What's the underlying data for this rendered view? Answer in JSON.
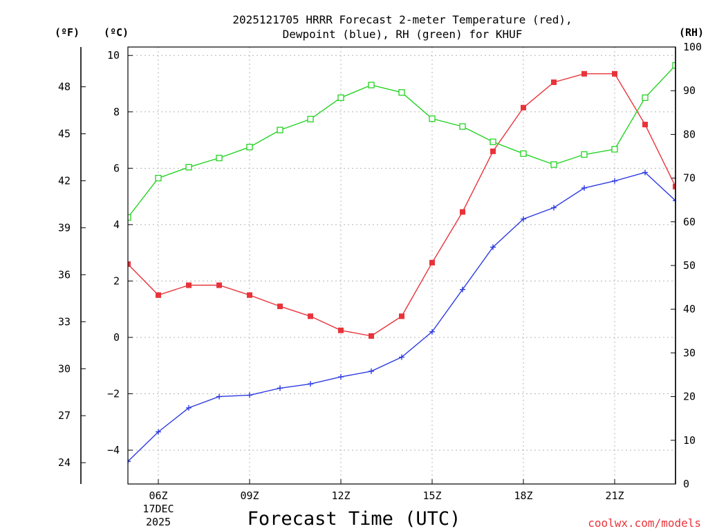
{
  "chart_data": {
    "type": "line",
    "title_line1": "2025121705 HRRR Forecast 2-meter Temperature (red),",
    "title_line2": "Dewpoint (blue), RH (green) for KHUF",
    "xlabel": "Forecast Time (UTC)",
    "watermark": "coolwx.com/models",
    "unit_labels": {
      "fahrenheit": "(ºF)",
      "celsius": "(ºC)",
      "rh": "(RH)"
    },
    "x_range": [
      5,
      23
    ],
    "x_ticks": [
      {
        "hour": 6,
        "label": "06Z",
        "sub1": "17DEC",
        "sub2": "2025"
      },
      {
        "hour": 9,
        "label": "09Z"
      },
      {
        "hour": 12,
        "label": "12Z"
      },
      {
        "hour": 15,
        "label": "15Z"
      },
      {
        "hour": 18,
        "label": "18Z"
      },
      {
        "hour": 21,
        "label": "21Z"
      }
    ],
    "celsius_axis": {
      "range": [
        -5.2,
        10.3
      ],
      "ticks": [
        "-4",
        "-2",
        "0",
        "2",
        "4",
        "6",
        "8",
        "10"
      ]
    },
    "fahrenheit_axis": {
      "ticks": [
        "24",
        "27",
        "30",
        "33",
        "36",
        "39",
        "42",
        "45",
        "48"
      ]
    },
    "rh_axis": {
      "range": [
        0,
        100
      ],
      "ticks": [
        "0",
        "10",
        "20",
        "30",
        "40",
        "50",
        "60",
        "70",
        "80",
        "90",
        "100"
      ]
    },
    "x": [
      5,
      6,
      7,
      8,
      9,
      10,
      11,
      12,
      13,
      14,
      15,
      16,
      17,
      18,
      19,
      20,
      21,
      22,
      23
    ],
    "series": [
      {
        "name": "Temperature",
        "unit": "C",
        "color": "#e8333a",
        "marker": "filled-square",
        "values": [
          2.6,
          1.5,
          1.85,
          1.85,
          1.5,
          1.1,
          0.75,
          0.25,
          0.05,
          0.75,
          2.65,
          4.45,
          6.6,
          8.15,
          9.05,
          9.35,
          9.35,
          7.55,
          5.35
        ]
      },
      {
        "name": "Dewpoint",
        "unit": "C",
        "color": "#2d3be0",
        "marker": "plus",
        "values": [
          -4.4,
          -3.35,
          -2.5,
          -2.1,
          -2.05,
          -1.8,
          -1.65,
          -1.4,
          -1.2,
          -0.7,
          0.2,
          1.7,
          3.2,
          4.2,
          4.6,
          5.3,
          5.55,
          5.85,
          4.85
        ]
      },
      {
        "name": "RH",
        "unit": "%",
        "color": "#22d322",
        "marker": "open-square",
        "values": [
          61,
          70,
          72.5,
          74.6,
          77.1,
          81,
          83.5,
          88.4,
          91.3,
          89.6,
          83.6,
          81.8,
          78.3,
          75.6,
          73.1,
          75.4,
          76.6,
          88.4,
          95.8
        ]
      }
    ]
  }
}
